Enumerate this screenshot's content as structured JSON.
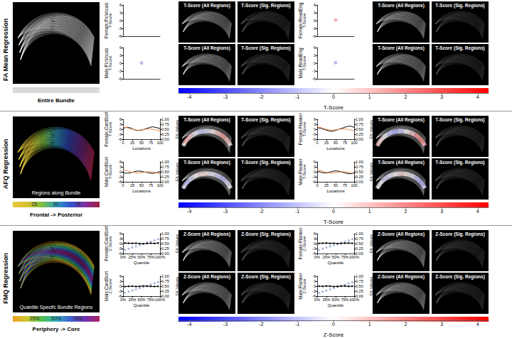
{
  "chart_data": [
    {
      "type": "scatter",
      "title": "Female:PicVocab",
      "ylabel": "T-Score",
      "xlim": [
        0,
        1
      ],
      "ylim": [
        -6,
        6
      ],
      "yticks": [
        -6,
        -3,
        0,
        3,
        6
      ],
      "tick_labels": "y",
      "x": [],
      "series": [
        {
          "color": "#f2a0a0",
          "values": []
        }
      ]
    },
    {
      "type": "scatter",
      "title": "Male:PicVocab",
      "ylabel": "T-Score",
      "xlim": [
        0,
        1
      ],
      "ylim": [
        -6,
        6
      ],
      "yticks": [
        -6,
        -3,
        0,
        3,
        6
      ],
      "tick_labels": "y",
      "x": [
        0.5
      ],
      "series": [
        {
          "color": "#a8b0e8",
          "values": [
            0.1
          ]
        }
      ]
    },
    {
      "type": "scatter",
      "title": "Female:ReadEng",
      "ylabel": "T-Score",
      "xlim": [
        0,
        1
      ],
      "ylim": [
        -6,
        6
      ],
      "yticks": [
        -6,
        -3,
        0,
        3,
        6
      ],
      "tick_labels": "y",
      "x": [
        0.5
      ],
      "series": [
        {
          "color": "#f2a0a0",
          "values": [
            0.3
          ]
        }
      ]
    },
    {
      "type": "scatter",
      "title": "Male:ReadEng",
      "ylabel": "T-Score",
      "xlim": [
        0,
        1
      ],
      "ylim": [
        -6,
        6
      ],
      "yticks": [
        -6,
        -3,
        0,
        3,
        6
      ],
      "tick_labels": "y",
      "x": [
        0.5
      ],
      "series": [
        {
          "color": "#a8b0e8",
          "values": [
            0.2
          ]
        }
      ]
    },
    {
      "type": "line",
      "title": "Female:CardSort",
      "xlabel": "Locations",
      "ylabel": "T-Score",
      "y2label": "FA Values",
      "xlim": [
        0,
        100
      ],
      "xticks": [
        0,
        25,
        50,
        75,
        100
      ],
      "ylim": [
        -6,
        6
      ],
      "yticks": [
        -6,
        -3,
        0,
        3,
        6
      ],
      "y2lim": [
        0,
        1
      ],
      "y2ticks": [
        {
          "value": 0,
          "label": "0.00"
        },
        {
          "value": 0.25,
          "label": "0.25"
        },
        {
          "value": 0.5,
          "label": "0.50"
        },
        {
          "value": 0.75,
          "label": "0.75"
        },
        {
          "value": 1,
          "label": "1.00"
        }
      ],
      "x": [
        0,
        10,
        20,
        30,
        40,
        50,
        60,
        70,
        80,
        90,
        100
      ],
      "series": [
        {
          "color": "#000000",
          "values": [
            0.5,
            1.2,
            0.8,
            -0.3,
            -0.8,
            -0.5,
            0.2,
            0.9,
            1.5,
            1.0,
            0.4
          ]
        },
        {
          "color": "#f08a4b",
          "axis": "y2",
          "values": [
            0.62,
            0.58,
            0.52,
            0.48,
            0.45,
            0.47,
            0.5,
            0.52,
            0.5,
            0.46,
            0.42
          ]
        }
      ]
    },
    {
      "type": "line",
      "title": "Male:CardSort",
      "xlabel": "Locations",
      "ylabel": "T-Score",
      "y2label": "FA Values",
      "xlim": [
        0,
        100
      ],
      "xticks": [
        0,
        25,
        50,
        75,
        100
      ],
      "ylim": [
        -6,
        6
      ],
      "yticks": [
        -6,
        -3,
        0,
        3,
        6
      ],
      "y2lim": [
        0,
        1
      ],
      "y2ticks": [
        {
          "value": 0,
          "label": "0.00"
        },
        {
          "value": 0.25,
          "label": "0.25"
        },
        {
          "value": 0.5,
          "label": "0.50"
        },
        {
          "value": 0.75,
          "label": "0.75"
        },
        {
          "value": 1,
          "label": "1.00"
        }
      ],
      "x": [
        0,
        10,
        20,
        30,
        40,
        50,
        60,
        70,
        80,
        90,
        100
      ],
      "series": [
        {
          "color": "#000000",
          "values": [
            -0.4,
            -0.9,
            -0.6,
            0.1,
            0.5,
            0.3,
            -0.2,
            -0.6,
            -1.0,
            -0.5,
            0.1
          ]
        },
        {
          "color": "#f08a4b",
          "axis": "y2",
          "values": [
            0.6,
            0.56,
            0.5,
            0.46,
            0.44,
            0.46,
            0.49,
            0.51,
            0.49,
            0.45,
            0.41
          ]
        }
      ]
    },
    {
      "type": "line",
      "title": "Female:Flanker",
      "xlabel": "Locations",
      "ylabel": "T-Score",
      "y2label": "FA Values",
      "xlim": [
        0,
        100
      ],
      "xticks": [
        0,
        25,
        50,
        75,
        100
      ],
      "ylim": [
        -6,
        6
      ],
      "yticks": [
        -6,
        -3,
        0,
        3,
        6
      ],
      "y2lim": [
        0,
        1
      ],
      "y2ticks": [
        {
          "value": 0,
          "label": "0.00"
        },
        {
          "value": 0.25,
          "label": "0.25"
        },
        {
          "value": 0.5,
          "label": "0.50"
        },
        {
          "value": 0.75,
          "label": "0.75"
        },
        {
          "value": 1,
          "label": "1.00"
        }
      ],
      "x": [
        0,
        10,
        20,
        30,
        40,
        50,
        60,
        70,
        80,
        90,
        100
      ],
      "series": [
        {
          "color": "#000000",
          "values": [
            1.0,
            0.6,
            -0.2,
            -0.9,
            -1.3,
            -0.7,
            0.1,
            0.8,
            1.6,
            1.9,
            1.2
          ]
        },
        {
          "color": "#f08a4b",
          "axis": "y2",
          "values": [
            0.62,
            0.58,
            0.52,
            0.48,
            0.45,
            0.47,
            0.5,
            0.52,
            0.5,
            0.46,
            0.42
          ]
        }
      ]
    },
    {
      "type": "line",
      "title": "Male:Flanker",
      "xlabel": "Locations",
      "ylabel": "T-Score",
      "y2label": "FA Values",
      "xlim": [
        0,
        100
      ],
      "xticks": [
        0,
        25,
        50,
        75,
        100
      ],
      "ylim": [
        -6,
        6
      ],
      "yticks": [
        -6,
        -3,
        0,
        3,
        6
      ],
      "y2lim": [
        0,
        1
      ],
      "y2ticks": [
        {
          "value": 0,
          "label": "0.00"
        },
        {
          "value": 0.25,
          "label": "0.25"
        },
        {
          "value": 0.5,
          "label": "0.50"
        },
        {
          "value": 0.75,
          "label": "0.75"
        },
        {
          "value": 1,
          "label": "1.00"
        }
      ],
      "x": [
        0,
        10,
        20,
        30,
        40,
        50,
        60,
        70,
        80,
        90,
        100
      ],
      "series": [
        {
          "color": "#000000",
          "values": [
            0.3,
            -0.2,
            -0.7,
            -0.4,
            0.2,
            0.6,
            0.3,
            -0.3,
            -0.9,
            -1.2,
            -0.6
          ]
        },
        {
          "color": "#f08a4b",
          "axis": "y2",
          "values": [
            0.6,
            0.56,
            0.5,
            0.46,
            0.44,
            0.46,
            0.49,
            0.51,
            0.49,
            0.45,
            0.41
          ]
        }
      ]
    },
    {
      "type": "line",
      "title": "Female:CardSort",
      "xlabel": "Quantile",
      "ylabel": "Z-Score",
      "y2label": "FA Values",
      "xlim": [
        0,
        100
      ],
      "xticks": [
        {
          "value": 0,
          "label": "0%"
        },
        {
          "value": 25,
          "label": "25%"
        },
        {
          "value": 50,
          "label": "50%"
        },
        {
          "value": 75,
          "label": "75%"
        },
        {
          "value": 100,
          "label": "100%"
        }
      ],
      "ylim": [
        -6,
        6
      ],
      "yticks": [
        -6,
        -3,
        0,
        3,
        6
      ],
      "y2lim": [
        0,
        1
      ],
      "y2ticks": [
        {
          "value": 0,
          "label": "0.00"
        },
        {
          "value": 0.25,
          "label": "0.25"
        },
        {
          "value": 0.5,
          "label": "0.50"
        },
        {
          "value": 0.75,
          "label": "0.75"
        },
        {
          "value": 1,
          "label": "1.00"
        }
      ],
      "x": [
        5,
        15,
        25,
        35,
        45,
        55,
        65,
        75,
        85,
        95
      ],
      "series": [
        {
          "color": "#000000",
          "marker": "circle",
          "values": [
            0.3,
            0.2,
            0.1,
            0.2,
            0.0,
            -0.1,
            0.1,
            0.2,
            0.1,
            0.3
          ]
        },
        {
          "type": "scatter",
          "color": "#8aa0d0",
          "axis": "y2",
          "values": [
            0.18,
            0.24,
            0.3,
            0.36,
            0.42,
            0.48,
            0.54,
            0.6,
            0.66,
            0.72
          ]
        }
      ]
    },
    {
      "type": "line",
      "title": "Male:CardSort",
      "xlabel": "Quantile",
      "ylabel": "Z-Score",
      "y2label": "FA Values",
      "xlim": [
        0,
        100
      ],
      "xticks": [
        {
          "value": 0,
          "label": "0%"
        },
        {
          "value": 25,
          "label": "25%"
        },
        {
          "value": 50,
          "label": "50%"
        },
        {
          "value": 75,
          "label": "75%"
        },
        {
          "value": 100,
          "label": "100%"
        }
      ],
      "ylim": [
        -6,
        6
      ],
      "yticks": [
        -6,
        -3,
        0,
        3,
        6
      ],
      "y2lim": [
        0,
        1
      ],
      "y2ticks": [
        {
          "value": 0,
          "label": "0.00"
        },
        {
          "value": 0.25,
          "label": "0.25"
        },
        {
          "value": 0.5,
          "label": "0.50"
        },
        {
          "value": 0.75,
          "label": "0.75"
        },
        {
          "value": 1,
          "label": "1.00"
        }
      ],
      "x": [
        5,
        15,
        25,
        35,
        45,
        55,
        65,
        75,
        85,
        95
      ],
      "series": [
        {
          "color": "#000000",
          "marker": "circle",
          "values": [
            -0.2,
            -0.1,
            0.0,
            -0.2,
            -0.1,
            0.1,
            0.0,
            -0.1,
            -0.2,
            -0.1
          ]
        },
        {
          "type": "scatter",
          "color": "#8aa0d0",
          "axis": "y2",
          "values": [
            0.16,
            0.22,
            0.28,
            0.34,
            0.4,
            0.46,
            0.52,
            0.58,
            0.64,
            0.7
          ]
        }
      ]
    },
    {
      "type": "line",
      "title": "Female:Flanker",
      "xlabel": "Quantile",
      "ylabel": "Z-Score",
      "y2label": "FA Values",
      "xlim": [
        0,
        100
      ],
      "xticks": [
        {
          "value": 0,
          "label": "0%"
        },
        {
          "value": 25,
          "label": "25%"
        },
        {
          "value": 50,
          "label": "50%"
        },
        {
          "value": 75,
          "label": "75%"
        },
        {
          "value": 100,
          "label": "100%"
        }
      ],
      "ylim": [
        -6,
        6
      ],
      "yticks": [
        -6,
        -3,
        0,
        3,
        6
      ],
      "y2lim": [
        0,
        1
      ],
      "y2ticks": [
        {
          "value": 0,
          "label": "0.00"
        },
        {
          "value": 0.25,
          "label": "0.25"
        },
        {
          "value": 0.5,
          "label": "0.50"
        },
        {
          "value": 0.75,
          "label": "0.75"
        },
        {
          "value": 1,
          "label": "1.00"
        }
      ],
      "x": [
        5,
        15,
        25,
        35,
        45,
        55,
        65,
        75,
        85,
        95
      ],
      "series": [
        {
          "color": "#000000",
          "marker": "circle",
          "values": [
            0.1,
            0.2,
            0.3,
            0.1,
            0.2,
            0.0,
            0.1,
            0.2,
            0.3,
            0.2
          ]
        },
        {
          "type": "scatter",
          "color": "#8aa0d0",
          "axis": "y2",
          "values": [
            0.18,
            0.24,
            0.3,
            0.36,
            0.42,
            0.48,
            0.54,
            0.6,
            0.66,
            0.72
          ]
        }
      ]
    },
    {
      "type": "line",
      "title": "Male:Flanker",
      "xlabel": "Quantile",
      "ylabel": "Z-Score",
      "y2label": "FA Values",
      "xlim": [
        0,
        100
      ],
      "xticks": [
        {
          "value": 0,
          "label": "0%"
        },
        {
          "value": 25,
          "label": "25%"
        },
        {
          "value": 50,
          "label": "50%"
        },
        {
          "value": 75,
          "label": "75%"
        },
        {
          "value": 100,
          "label": "100%"
        }
      ],
      "ylim": [
        -6,
        6
      ],
      "yticks": [
        -6,
        -3,
        0,
        3,
        6
      ],
      "y2lim": [
        0,
        1
      ],
      "y2ticks": [
        {
          "value": 0,
          "label": "0.00"
        },
        {
          "value": 0.25,
          "label": "0.25"
        },
        {
          "value": 0.5,
          "label": "0.50"
        },
        {
          "value": 0.75,
          "label": "0.75"
        },
        {
          "value": 1,
          "label": "1.00"
        }
      ],
      "x": [
        5,
        15,
        25,
        35,
        45,
        55,
        65,
        75,
        85,
        95
      ],
      "series": [
        {
          "color": "#000000",
          "marker": "circle",
          "values": [
            0.0,
            -0.1,
            0.1,
            0.0,
            -0.2,
            -0.1,
            0.0,
            0.1,
            -0.1,
            0.0
          ]
        },
        {
          "type": "scatter",
          "color": "#8aa0d0",
          "axis": "y2",
          "values": [
            0.16,
            0.22,
            0.28,
            0.34,
            0.4,
            0.46,
            0.52,
            0.58,
            0.64,
            0.7
          ]
        }
      ]
    }
  ],
  "panels": [
    {
      "title": "FA Mean Regression",
      "bundle_legend": {
        "label": "Entire Bundle",
        "colors": [
          "#d9d9d9"
        ]
      },
      "image_titles": [
        "T-Score (All Regions)",
        "T-Score (Sig. Regions)"
      ],
      "colorbar": {
        "label": "T-Score",
        "lim": [
          -4.3,
          4.3
        ],
        "ticks": [
          -4,
          -3,
          -2,
          -1,
          0,
          1,
          2,
          3,
          4
        ],
        "colors": [
          "#0000ff",
          "#ffffff",
          "#ff0000"
        ]
      }
    },
    {
      "title": "AFQ Regression",
      "bundle_caption": "Regions along Bundle",
      "bundle_legend": {
        "label": "Frontal -> Posterior",
        "lim": [
          0,
          100
        ],
        "ticks": [
          25,
          50,
          75
        ],
        "colors": [
          "#e8c840",
          "#d8c030",
          "#7cc040",
          "#30a0c0",
          "#3050d0",
          "#8030a0",
          "#a02040"
        ]
      },
      "image_titles": [
        "T-Score (All Regions)",
        "T-Score (Sig. Regions)"
      ],
      "colorbar": {
        "label": "T-Score",
        "lim": [
          -4.3,
          4.3
        ],
        "ticks": [
          -4,
          -3,
          -2,
          -1,
          0,
          1,
          2,
          3,
          4
        ],
        "colors": [
          "#0000ff",
          "#ffffff",
          "#ff0000"
        ]
      }
    },
    {
      "title": "FMQ Regression",
      "bundle_caption": "Quantile Specifc Bundle Regions",
      "bundle_legend": {
        "label": "Periphery -> Core",
        "lim": [
          0,
          100
        ],
        "ticks": [
          {
            "value": 25,
            "label": "25%"
          },
          {
            "value": 50,
            "label": "50%"
          },
          {
            "value": 75,
            "label": "75%"
          }
        ],
        "colors": [
          "#f0a020",
          "#c8c830",
          "#50c050",
          "#30b0c0",
          "#4060d0",
          "#7030b0",
          "#b02060"
        ]
      },
      "image_titles": [
        "Z-Score (All Regions)",
        "Z-Score (Sig. Regions)"
      ],
      "colorbar": {
        "label": "Z-Score",
        "lim": [
          -4.3,
          4.3
        ],
        "ticks": [
          -4,
          -3,
          -2,
          -1,
          0,
          1,
          2,
          3,
          4
        ],
        "colors": [
          "#0000ff",
          "#ffffff",
          "#ff0000"
        ]
      }
    }
  ]
}
